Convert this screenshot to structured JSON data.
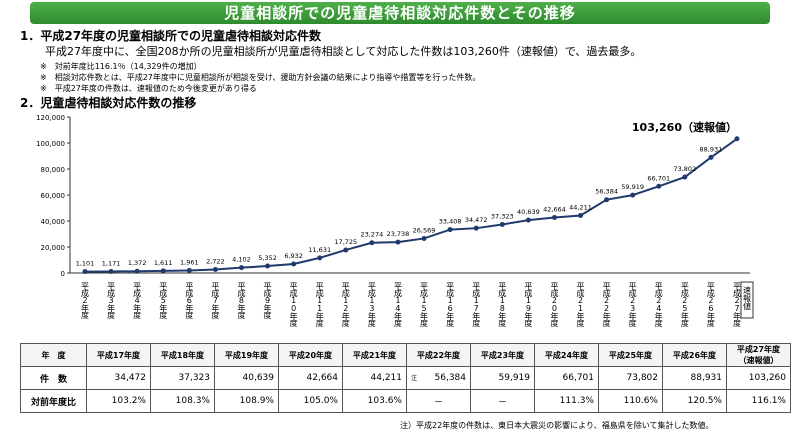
{
  "banner": "児童相談所での児童虐待相談対応件数とその推移",
  "section1": {
    "heading": "1．平成27年度の児童相談所での児童虐待相談対応件数",
    "text": "平成27年度中に、全国208か所の児童相談所が児童虐待相談として対応した件数は103,260件（速報値）で、過去最多。",
    "notes": [
      "※　対前年度比116.1％（14,329件の増加）",
      "※　相談対応件数とは、平成27年度中に児童相談所が相談を受け、援助方針会議の結果により指導や措置等を行った件数。",
      "※　平成27年度の件数は、速報値のため今後変更があり得る"
    ]
  },
  "section2": {
    "heading": "2．児童虐待相談対応件数の推移"
  },
  "chart_data": {
    "type": "line",
    "color": "#1f3a6b",
    "categories": [
      "平成2年度",
      "平成3年度",
      "平成4年度",
      "平成5年度",
      "平成6年度",
      "平成7年度",
      "平成8年度",
      "平成9年度",
      "平成10年度",
      "平成11年度",
      "平成12年度",
      "平成13年度",
      "平成14年度",
      "平成15年度",
      "平成16年度",
      "平成17年度",
      "平成18年度",
      "平成19年度",
      "平成20年度",
      "平成21年度",
      "平成22年度",
      "平成23年度",
      "平成24年度",
      "平成25年度",
      "平成26年度",
      "平成27年度"
    ],
    "category_note": "速報値",
    "values": [
      1101,
      1171,
      1372,
      1611,
      1961,
      2722,
      4102,
      5352,
      6932,
      11631,
      17725,
      23274,
      23738,
      26569,
      33408,
      34472,
      37323,
      40639,
      42664,
      44211,
      56384,
      59919,
      66701,
      73802,
      88931,
      103260
    ],
    "value_labels": [
      "1,101",
      "1,171",
      "1,372",
      "1,611",
      "1,961",
      "2,722",
      "4,102",
      "5,352",
      "6,932",
      "11,631",
      "17,725",
      "23,274",
      "23,738",
      "26,569",
      "33,408",
      "34,472",
      "37,323",
      "40,639",
      "42,664",
      "44,211",
      "56,384",
      "59,919",
      "66,701",
      "73,802",
      "88,931",
      "103,260（速報値）"
    ],
    "ylim": [
      0,
      120000
    ],
    "yticks": [
      0,
      {
        "value": 20000,
        "label": "20,000"
      },
      {
        "value": 40000,
        "label": "40,000"
      },
      {
        "value": 60000,
        "label": "60,000"
      },
      {
        "value": 80000,
        "label": "80,000"
      },
      {
        "value": 100000,
        "label": "100,000"
      },
      {
        "value": 120000,
        "label": "120,000"
      }
    ]
  },
  "table": {
    "header": [
      "年　度",
      "平成17年度",
      "平成18年度",
      "平成19年度",
      "平成20年度",
      "平成21年度",
      "平成22年度",
      "平成23年度",
      "平成24年度",
      "平成25年度",
      "平成26年度",
      "平成27年度（速報値）"
    ],
    "note_mark": "注",
    "rows": [
      [
        "件　数",
        "34,472",
        "37,323",
        "40,639",
        "42,664",
        "44,211",
        "56,384",
        "59,919",
        "66,701",
        "73,802",
        "88,931",
        "103,260"
      ],
      [
        "対前年度比",
        "103.2%",
        "108.3%",
        "108.9%",
        "105.0%",
        "103.6%",
        "－",
        "－",
        "111.3%",
        "110.6%",
        "120.5%",
        "116.1%"
      ]
    ]
  },
  "footnote": "注）平成22年度の件数は、東日本大震災の影響により、福島県を除いて集計した数値。"
}
